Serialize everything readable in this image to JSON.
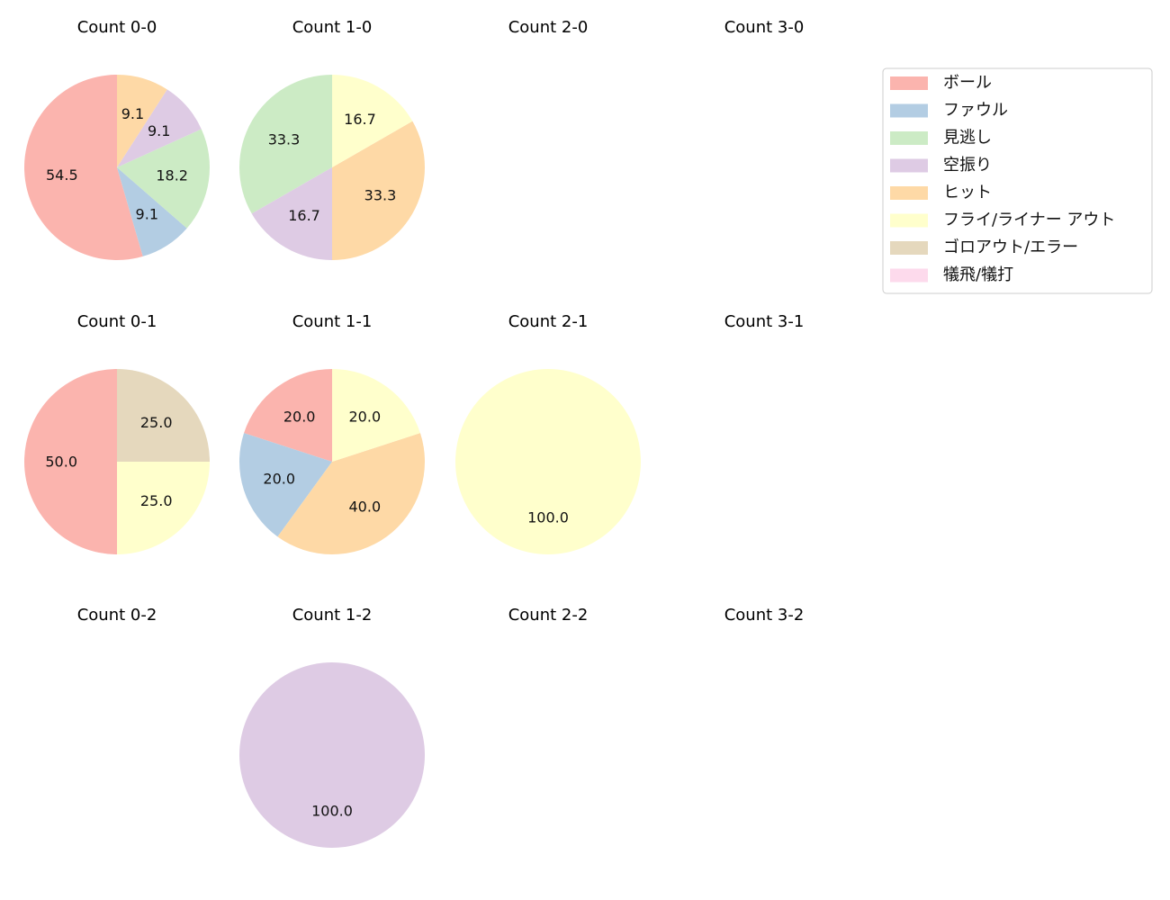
{
  "chart_data": [
    {
      "type": "pie",
      "title": "Count 0-0",
      "labels": [
        "ボール",
        "ファウル",
        "見逃し",
        "空振り",
        "ヒット"
      ],
      "values": [
        54.5,
        9.1,
        18.2,
        9.1,
        9.1
      ]
    },
    {
      "type": "pie",
      "title": "Count 1-0",
      "labels": [
        "見逃し",
        "空振り",
        "ヒット",
        "フライ/ライナー アウト"
      ],
      "values": [
        33.3,
        16.7,
        33.3,
        16.7
      ]
    },
    {
      "type": "pie",
      "title": "Count 2-0",
      "labels": [],
      "values": []
    },
    {
      "type": "pie",
      "title": "Count 3-0",
      "labels": [],
      "values": []
    },
    {
      "type": "pie",
      "title": "Count 0-1",
      "labels": [
        "ボール",
        "フライ/ライナー アウト",
        "ゴロアウト/エラー"
      ],
      "values": [
        50.0,
        25.0,
        25.0
      ]
    },
    {
      "type": "pie",
      "title": "Count 1-1",
      "labels": [
        "ボール",
        "ファウル",
        "ヒット",
        "フライ/ライナー アウト"
      ],
      "values": [
        20.0,
        20.0,
        40.0,
        20.0
      ]
    },
    {
      "type": "pie",
      "title": "Count 2-1",
      "labels": [
        "フライ/ライナー アウト"
      ],
      "values": [
        100.0
      ]
    },
    {
      "type": "pie",
      "title": "Count 3-1",
      "labels": [],
      "values": []
    },
    {
      "type": "pie",
      "title": "Count 0-2",
      "labels": [],
      "values": []
    },
    {
      "type": "pie",
      "title": "Count 1-2",
      "labels": [
        "空振り"
      ],
      "values": [
        100.0
      ]
    },
    {
      "type": "pie",
      "title": "Count 2-2",
      "labels": [],
      "values": []
    },
    {
      "type": "pie",
      "title": "Count 3-2",
      "labels": [],
      "values": []
    }
  ],
  "legend": {
    "placement": "top-right",
    "items": [
      {
        "label": "ボール",
        "color": "#fbb4ae"
      },
      {
        "label": "ファウル",
        "color": "#b3cde3"
      },
      {
        "label": "見逃し",
        "color": "#ccebc5"
      },
      {
        "label": "空振り",
        "color": "#decbe4"
      },
      {
        "label": "ヒット",
        "color": "#fed9a6"
      },
      {
        "label": "フライ/ライナー アウト",
        "color": "#ffffcc"
      },
      {
        "label": "ゴロアウト/エラー",
        "color": "#e5d8bd"
      },
      {
        "label": "犠飛/犠打",
        "color": "#fddaec"
      }
    ]
  }
}
